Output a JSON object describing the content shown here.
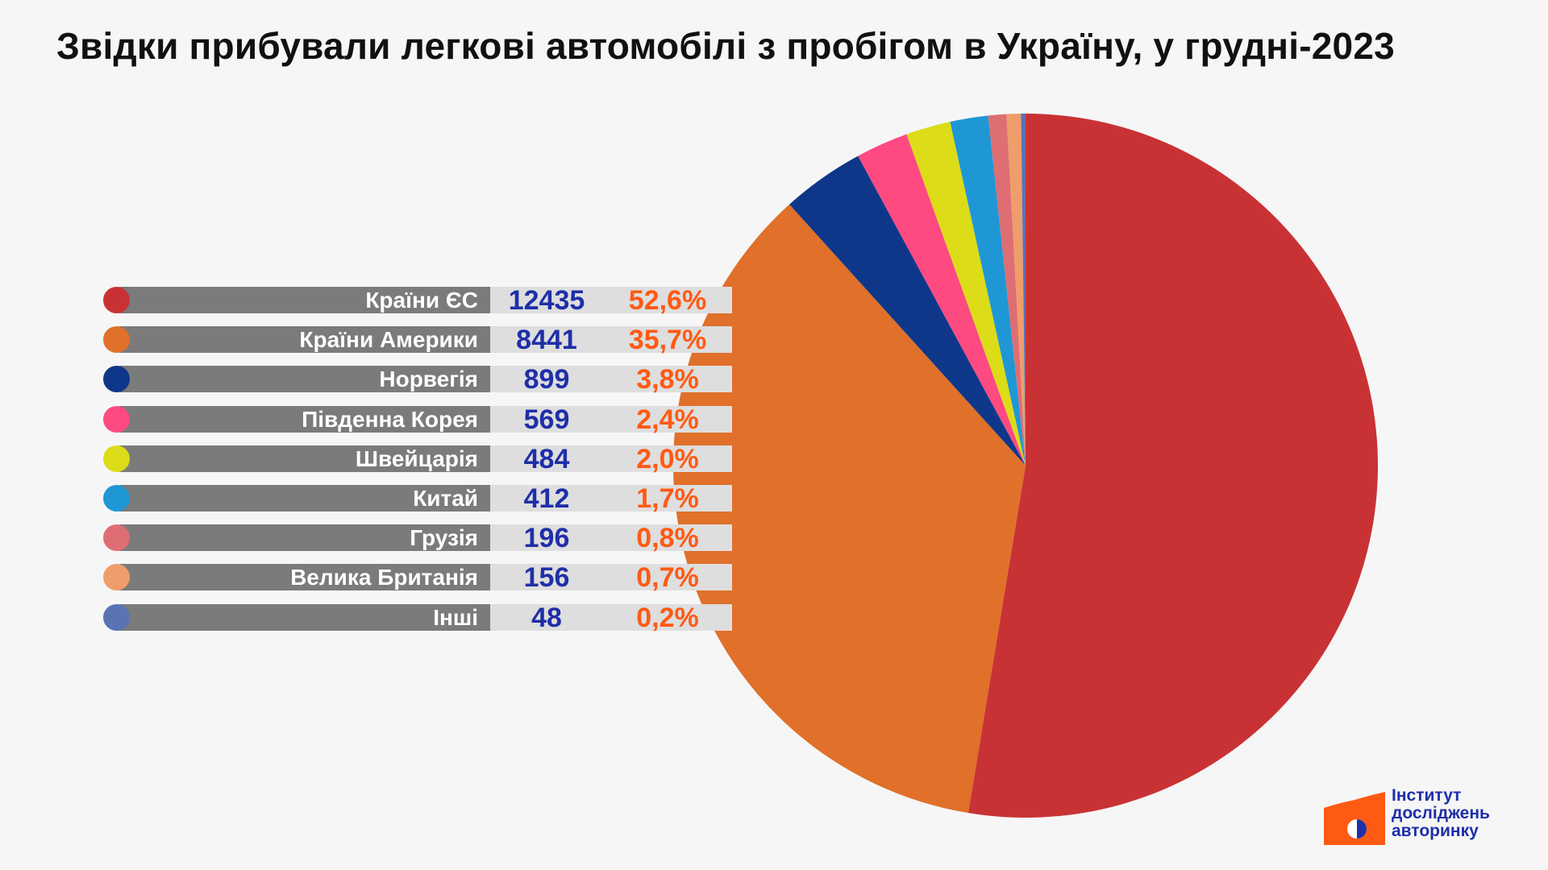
{
  "title": "Звідки прибували легкові автомобілі з пробігом в Україну, у грудні-2023",
  "chart_data": {
    "type": "pie",
    "title": "Звідки прибували легкові автомобілі з пробігом в Україну, у грудні-2023",
    "slices": [
      {
        "label": "Країни ЄС",
        "count": "12435",
        "value": 12435,
        "percent": "52,6%",
        "color": "#c93234"
      },
      {
        "label": "Країни Америки",
        "count": "8441",
        "value": 8441,
        "percent": "35,7%",
        "color": "#e0702a"
      },
      {
        "label": "Норвегія",
        "count": "899",
        "value": 899,
        "percent": "3,8%",
        "color": "#0f3789"
      },
      {
        "label": "Південна Корея",
        "count": "569",
        "value": 569,
        "percent": "2,4%",
        "color": "#fd4a81"
      },
      {
        "label": "Швейцарія",
        "count": "484",
        "value": 484,
        "percent": "2,0%",
        "color": "#dcdc18"
      },
      {
        "label": "Китай",
        "count": "412",
        "value": 412,
        "percent": "1,7%",
        "color": "#1f97d5"
      },
      {
        "label": "Грузія",
        "count": "196",
        "value": 196,
        "percent": "0,8%",
        "color": "#de6e73"
      },
      {
        "label": "Велика Британія",
        "count": "156",
        "value": 156,
        "percent": "0,7%",
        "color": "#ef9d6b"
      },
      {
        "label": "Інші",
        "count": "48",
        "value": 48,
        "percent": "0,2%",
        "color": "#5973b5"
      }
    ]
  },
  "logo": {
    "line1": "Інститут",
    "line2": "досліджень",
    "line3": "авторинку",
    "colors": {
      "flag": "#ff5a14",
      "accent": "#1f2fa8",
      "text": "#1f2fa8"
    }
  }
}
